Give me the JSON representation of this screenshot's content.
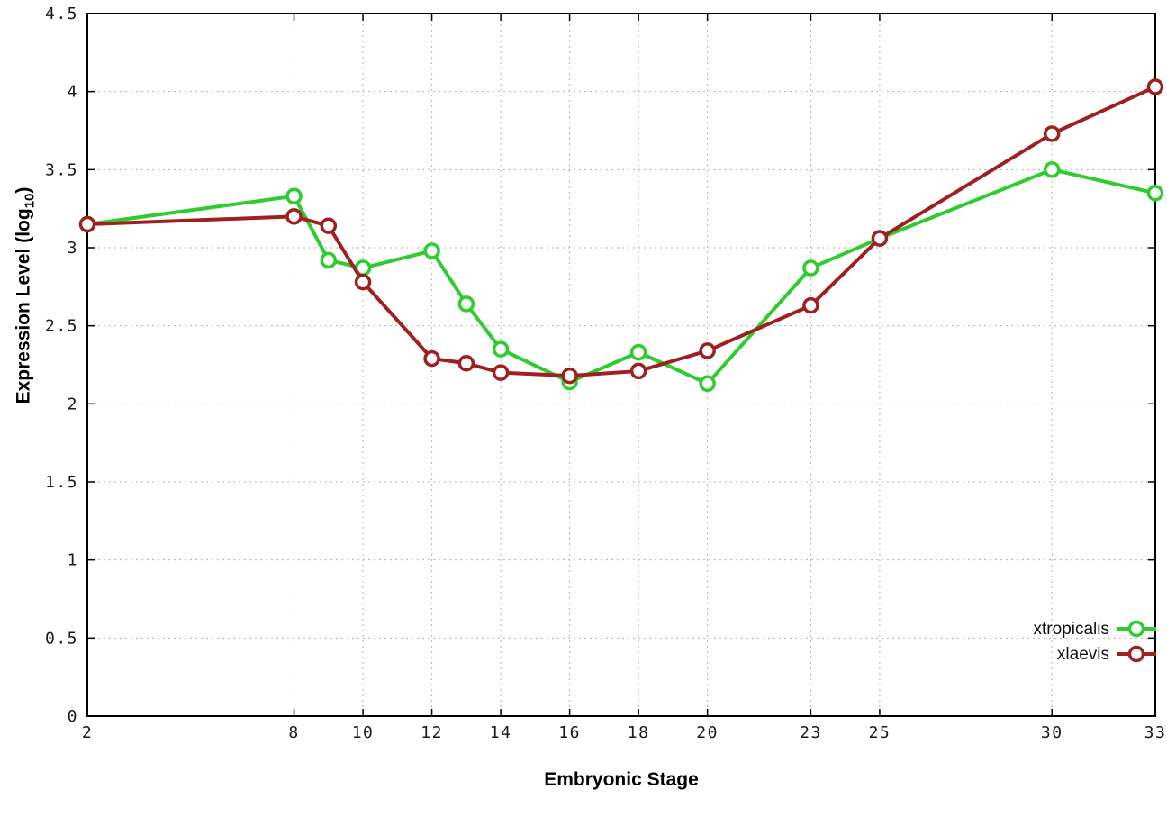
{
  "labels": {
    "xlabel": "Embryonic Stage",
    "ylabel_main": "Expression Level (log",
    "ylabel_sub": "10",
    "ylabel_close": ")"
  },
  "chart_data": {
    "type": "line",
    "title": "",
    "xlabel": "Embryonic Stage",
    "ylabel": "Expression Level (log10)",
    "xlim": [
      2,
      33
    ],
    "ylim": [
      0,
      4.5
    ],
    "grid": true,
    "legend_position": "bottom-right-inside",
    "x": [
      2,
      8,
      9,
      10,
      12,
      13,
      14,
      16,
      18,
      20,
      23,
      25,
      30,
      33
    ],
    "series": [
      {
        "name": "xtropicalis",
        "color": "#2ecc2e",
        "marker": "open-circle",
        "values": [
          3.15,
          3.33,
          2.92,
          2.87,
          2.98,
          2.64,
          2.35,
          2.14,
          2.33,
          2.13,
          2.87,
          3.06,
          3.5,
          3.35
        ]
      },
      {
        "name": "xlaevis",
        "color": "#9e2020",
        "marker": "open-circle",
        "values": [
          3.15,
          3.2,
          3.14,
          2.78,
          2.29,
          2.26,
          2.2,
          2.18,
          2.21,
          2.34,
          2.63,
          3.06,
          3.73,
          4.03
        ]
      }
    ],
    "xticks": {
      "values": [
        2,
        8,
        10,
        12,
        14,
        16,
        18,
        20,
        23,
        25,
        30,
        33
      ],
      "labels": [
        "2",
        "8",
        "10",
        "12",
        "14",
        "16",
        "18",
        "20",
        "23",
        "25",
        "30",
        "33"
      ]
    },
    "yticks": {
      "values": [
        0,
        0.5,
        1,
        1.5,
        2,
        2.5,
        3,
        3.5,
        4,
        4.5
      ],
      "labels": [
        "0",
        "0.5",
        "1",
        "1.5",
        "2",
        "2.5",
        "3",
        "3.5",
        "4",
        "4.5"
      ]
    }
  }
}
